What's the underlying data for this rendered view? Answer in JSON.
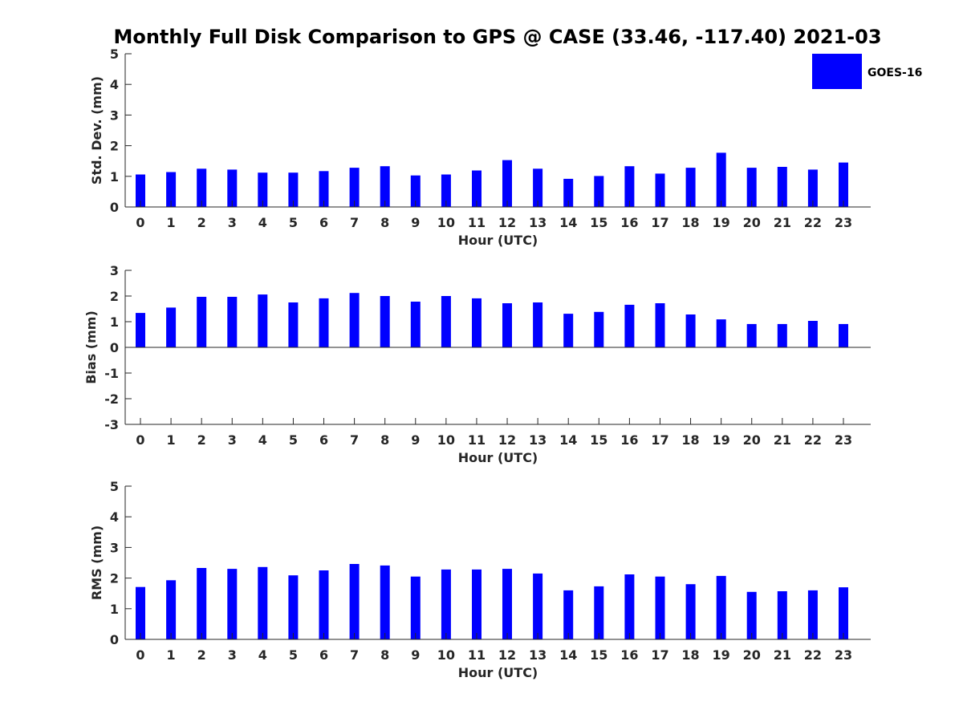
{
  "title": "Monthly Full Disk Comparison to GPS @ CASE (33.46, -117.40) 2021-03",
  "legend": {
    "label": "GOES-16",
    "color": "#0000ff",
    "placement": "top-right"
  },
  "chart_data": [
    {
      "type": "bar",
      "name": "std-dev",
      "categories": [
        "0",
        "1",
        "2",
        "3",
        "4",
        "5",
        "6",
        "7",
        "8",
        "9",
        "10",
        "11",
        "12",
        "13",
        "14",
        "15",
        "16",
        "17",
        "18",
        "19",
        "20",
        "21",
        "22",
        "23"
      ],
      "values": [
        1.06,
        1.14,
        1.25,
        1.22,
        1.12,
        1.12,
        1.17,
        1.28,
        1.33,
        1.03,
        1.06,
        1.19,
        1.53,
        1.25,
        0.92,
        1.01,
        1.33,
        1.09,
        1.28,
        1.77,
        1.28,
        1.31,
        1.22,
        1.45
      ],
      "xlabel": "Hour (UTC)",
      "ylabel": "Std. Dev. (mm)",
      "ylim": [
        0,
        5
      ],
      "yticks": [
        "0",
        "1",
        "2",
        "3",
        "4",
        "5"
      ],
      "grid": false
    },
    {
      "type": "bar",
      "name": "bias",
      "categories": [
        "0",
        "1",
        "2",
        "3",
        "4",
        "5",
        "6",
        "7",
        "8",
        "9",
        "10",
        "11",
        "12",
        "13",
        "14",
        "15",
        "16",
        "17",
        "18",
        "19",
        "20",
        "21",
        "22",
        "23"
      ],
      "values": [
        1.34,
        1.55,
        1.97,
        1.97,
        2.06,
        1.75,
        1.91,
        2.12,
        2.0,
        1.78,
        2.0,
        1.91,
        1.72,
        1.75,
        1.31,
        1.38,
        1.66,
        1.72,
        1.28,
        1.09,
        0.91,
        0.91,
        1.03,
        0.91
      ],
      "xlabel": "Hour (UTC)",
      "ylabel": "Bias (mm)",
      "ylim": [
        -3,
        3
      ],
      "yticks": [
        "-3",
        "-2",
        "-1",
        "0",
        "1",
        "2",
        "3"
      ],
      "grid": false
    },
    {
      "type": "bar",
      "name": "rms",
      "categories": [
        "0",
        "1",
        "2",
        "3",
        "4",
        "5",
        "6",
        "7",
        "8",
        "9",
        "10",
        "11",
        "12",
        "13",
        "14",
        "15",
        "16",
        "17",
        "18",
        "19",
        "20",
        "21",
        "22",
        "23"
      ],
      "values": [
        1.71,
        1.93,
        2.33,
        2.3,
        2.36,
        2.09,
        2.25,
        2.46,
        2.41,
        2.05,
        2.28,
        2.28,
        2.3,
        2.15,
        1.6,
        1.73,
        2.12,
        2.05,
        1.8,
        2.07,
        1.55,
        1.57,
        1.6,
        1.7
      ],
      "xlabel": "Hour (UTC)",
      "ylabel": "RMS (mm)",
      "ylim": [
        0,
        5
      ],
      "yticks": [
        "0",
        "1",
        "2",
        "3",
        "4",
        "5"
      ],
      "grid": false
    }
  ]
}
